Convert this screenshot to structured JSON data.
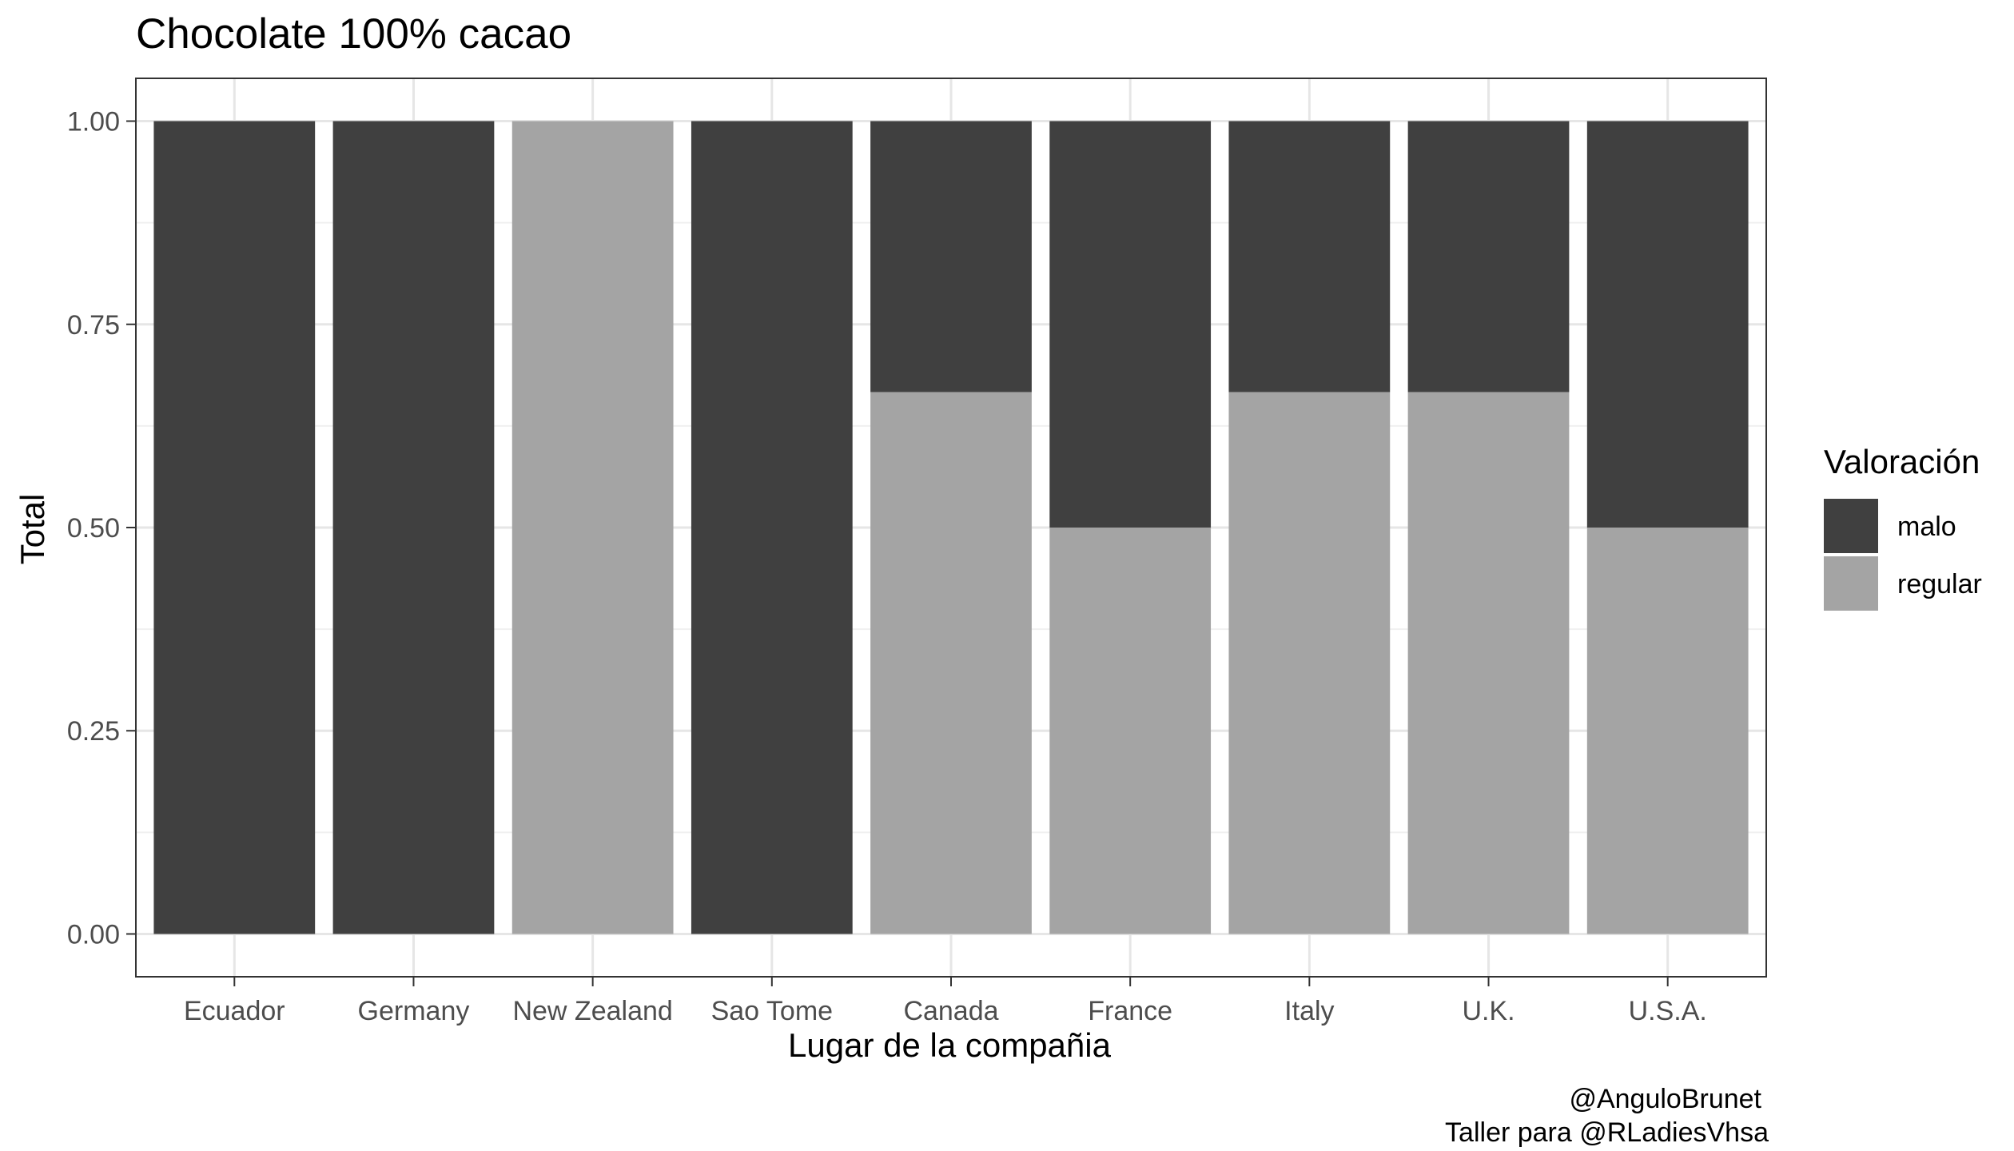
{
  "chart_data": {
    "type": "bar",
    "stacked": true,
    "title": "Chocolate 100% cacao",
    "xlabel": "Lugar de la compañia",
    "ylabel": "Total",
    "ylim": [
      0,
      1
    ],
    "yticks": [
      "0.00",
      "0.25",
      "0.50",
      "0.75",
      "1.00"
    ],
    "grid": true,
    "legend": {
      "title": "Valoración",
      "position": "right"
    },
    "categories": [
      "Ecuador",
      "Germany",
      "New Zealand",
      "Sao Tome",
      "Canada",
      "France",
      "Italy",
      "U.K.",
      "U.S.A."
    ],
    "series": [
      {
        "name": "malo",
        "color": "#404040",
        "values": [
          1.0,
          1.0,
          0.0,
          1.0,
          0.3333,
          0.5,
          0.3333,
          0.3333,
          0.5
        ]
      },
      {
        "name": "regular",
        "color": "#a4a4a4",
        "values": [
          0.0,
          0.0,
          1.0,
          0.0,
          0.6667,
          0.5,
          0.6667,
          0.6667,
          0.5
        ]
      }
    ],
    "caption": [
      "@AnguloBrunet",
      "Taller para @RLadiesVhsa"
    ]
  }
}
